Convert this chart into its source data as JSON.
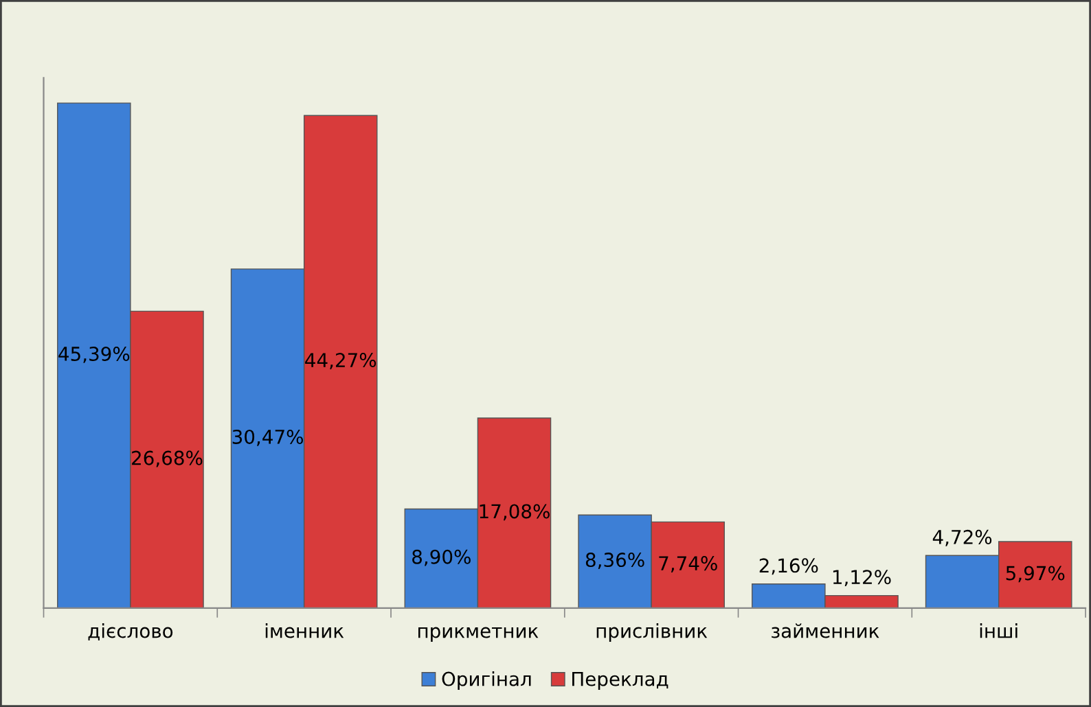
{
  "chart_data": {
    "type": "bar",
    "categories": [
      "дієслово",
      "іменник",
      "прикметник",
      "прислівник",
      "займенник",
      "інші"
    ],
    "series": [
      {
        "name": "Оригінал",
        "color": "#3d7fd6",
        "values": [
          45.39,
          30.47,
          8.9,
          8.36,
          2.16,
          4.72
        ],
        "value_labels": [
          "45,39%",
          "30,47%",
          "8,90%",
          "8,36%",
          "2,16%",
          "4,72%"
        ]
      },
      {
        "name": "Переклад",
        "color": "#d83b3b",
        "values": [
          26.68,
          44.27,
          17.08,
          7.74,
          1.12,
          5.97
        ],
        "value_labels": [
          "26,68%",
          "44,27%",
          "17,08%",
          "7,74%",
          "1,12%",
          "5,97%"
        ]
      }
    ],
    "legend": "bottom",
    "grid": false
  }
}
